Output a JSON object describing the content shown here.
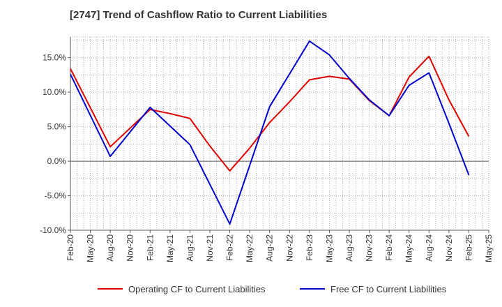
{
  "chart_data": {
    "type": "line",
    "title": "[2747]  Trend of Cashflow Ratio to Current Liabilities",
    "xlabel": "",
    "ylabel": "",
    "ylim": [
      -10,
      18
    ],
    "y_ticks": [
      -10,
      -5,
      0,
      5,
      10,
      15
    ],
    "y_tick_labels": [
      "-10.0%",
      "-5.0%",
      "0.0%",
      "5.0%",
      "10.0%",
      "15.0%"
    ],
    "x_tick_labels": [
      "Feb-20",
      "May-20",
      "Aug-20",
      "Nov-20",
      "Feb-21",
      "May-21",
      "Aug-21",
      "Nov-21",
      "Feb-22",
      "May-22",
      "Aug-22",
      "Nov-22",
      "Feb-23",
      "May-23",
      "Aug-23",
      "Nov-23",
      "Feb-24",
      "May-24",
      "Aug-24",
      "Nov-24",
      "Feb-25",
      "May-25"
    ],
    "grid": true,
    "legend_position": "bottom",
    "series": [
      {
        "name": "Operating CF to Current Liabilities",
        "color": "#e00000",
        "points": [
          [
            0,
            13.4
          ],
          [
            2,
            2.1
          ],
          [
            4,
            7.5
          ],
          [
            5,
            6.9
          ],
          [
            6,
            6.2
          ],
          [
            7,
            2.2
          ],
          [
            8,
            -1.4
          ],
          [
            9,
            1.9
          ],
          [
            10,
            5.6
          ],
          [
            11,
            8.6
          ],
          [
            12,
            11.8
          ],
          [
            13,
            12.3
          ],
          [
            14,
            11.9
          ],
          [
            15,
            8.8
          ],
          [
            16,
            6.6
          ],
          [
            17,
            12.2
          ],
          [
            18,
            15.2
          ],
          [
            19,
            8.9
          ],
          [
            20,
            3.6
          ]
        ]
      },
      {
        "name": "Free CF to Current Liabilities",
        "color": "#0000cc",
        "points": [
          [
            0,
            12.6
          ],
          [
            2,
            0.7
          ],
          [
            4,
            7.8
          ],
          [
            6,
            2.4
          ],
          [
            8,
            -9.1
          ],
          [
            10,
            7.9
          ],
          [
            12,
            17.4
          ],
          [
            13,
            15.4
          ],
          [
            14,
            12.0
          ],
          [
            15,
            8.9
          ],
          [
            16,
            6.6
          ],
          [
            17,
            11.0
          ],
          [
            18,
            12.8
          ],
          [
            19,
            5.5
          ],
          [
            20,
            -2.0
          ]
        ]
      }
    ]
  }
}
